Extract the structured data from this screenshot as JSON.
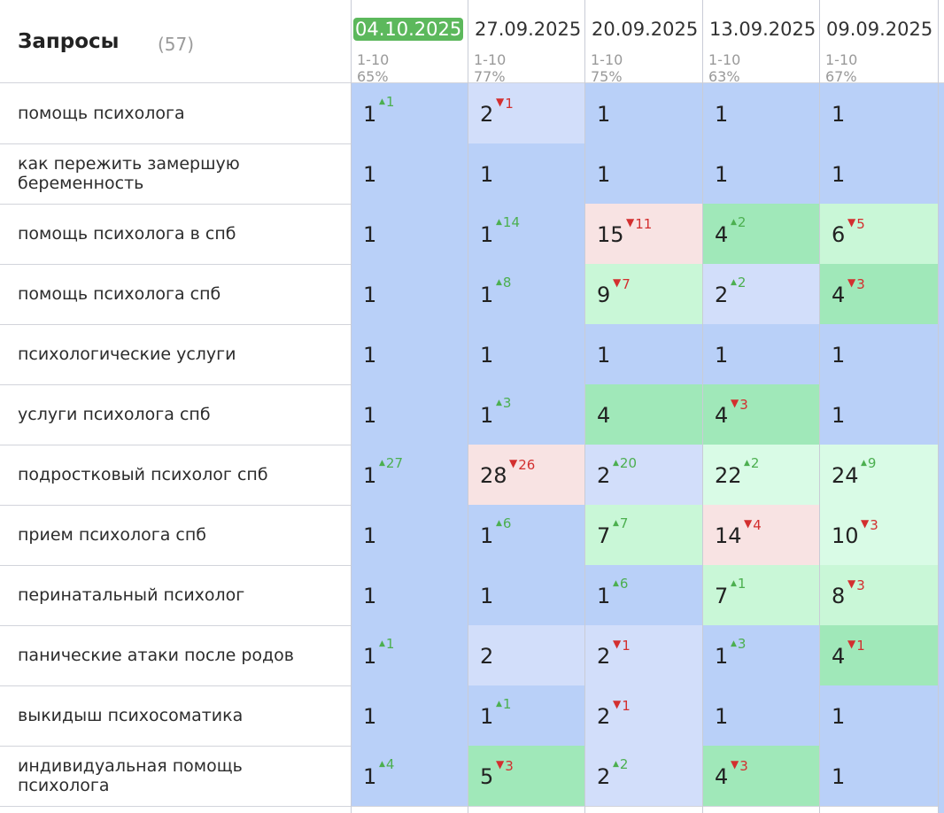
{
  "header": {
    "title": "Запросы",
    "count": "(57)"
  },
  "dates": [
    {
      "date": "04.10.2025",
      "range": "1-10",
      "pct": "65%",
      "current": true
    },
    {
      "date": "27.09.2025",
      "range": "1-10",
      "pct": "77%",
      "current": false
    },
    {
      "date": "20.09.2025",
      "range": "1-10",
      "pct": "75%",
      "current": false
    },
    {
      "date": "13.09.2025",
      "range": "1-10",
      "pct": "63%",
      "current": false
    },
    {
      "date": "09.09.2025",
      "range": "1-10",
      "pct": "67%",
      "current": false
    }
  ],
  "colors": {
    "blue": "#b9d0f8",
    "light_blue": "#d2defa",
    "green": "#a0e8b9",
    "light_green": "#c9f7d7",
    "pale_green": "#d9fbe6",
    "pink": "#f8e3e3",
    "up": "#4caf50",
    "down": "#d32f2f",
    "current_date": "#5cb85c"
  },
  "rows": [
    {
      "keyword": "помощь психолога",
      "cells": [
        {
          "pos": "1",
          "delta": "1",
          "dir": "up",
          "bg": "blue"
        },
        {
          "pos": "2",
          "delta": "1",
          "dir": "down",
          "bg": "light_blue"
        },
        {
          "pos": "1",
          "delta": "",
          "dir": "",
          "bg": "blue"
        },
        {
          "pos": "1",
          "delta": "",
          "dir": "",
          "bg": "blue"
        },
        {
          "pos": "1",
          "delta": "",
          "dir": "",
          "bg": "blue"
        }
      ]
    },
    {
      "keyword": "как пережить замершую беременность",
      "cells": [
        {
          "pos": "1",
          "delta": "",
          "dir": "",
          "bg": "blue"
        },
        {
          "pos": "1",
          "delta": "",
          "dir": "",
          "bg": "blue"
        },
        {
          "pos": "1",
          "delta": "",
          "dir": "",
          "bg": "blue"
        },
        {
          "pos": "1",
          "delta": "",
          "dir": "",
          "bg": "blue"
        },
        {
          "pos": "1",
          "delta": "",
          "dir": "",
          "bg": "blue"
        }
      ]
    },
    {
      "keyword": "помощь психолога в спб",
      "cells": [
        {
          "pos": "1",
          "delta": "",
          "dir": "",
          "bg": "blue"
        },
        {
          "pos": "1",
          "delta": "14",
          "dir": "up",
          "bg": "blue"
        },
        {
          "pos": "15",
          "delta": "11",
          "dir": "down",
          "bg": "pink"
        },
        {
          "pos": "4",
          "delta": "2",
          "dir": "up",
          "bg": "green"
        },
        {
          "pos": "6",
          "delta": "5",
          "dir": "down",
          "bg": "light_green"
        }
      ]
    },
    {
      "keyword": "помощь психолога спб",
      "cells": [
        {
          "pos": "1",
          "delta": "",
          "dir": "",
          "bg": "blue"
        },
        {
          "pos": "1",
          "delta": "8",
          "dir": "up",
          "bg": "blue"
        },
        {
          "pos": "9",
          "delta": "7",
          "dir": "down",
          "bg": "light_green"
        },
        {
          "pos": "2",
          "delta": "2",
          "dir": "up",
          "bg": "light_blue"
        },
        {
          "pos": "4",
          "delta": "3",
          "dir": "down",
          "bg": "green"
        }
      ]
    },
    {
      "keyword": "психологические услуги",
      "cells": [
        {
          "pos": "1",
          "delta": "",
          "dir": "",
          "bg": "blue"
        },
        {
          "pos": "1",
          "delta": "",
          "dir": "",
          "bg": "blue"
        },
        {
          "pos": "1",
          "delta": "",
          "dir": "",
          "bg": "blue"
        },
        {
          "pos": "1",
          "delta": "",
          "dir": "",
          "bg": "blue"
        },
        {
          "pos": "1",
          "delta": "",
          "dir": "",
          "bg": "blue"
        }
      ]
    },
    {
      "keyword": "услуги психолога спб",
      "cells": [
        {
          "pos": "1",
          "delta": "",
          "dir": "",
          "bg": "blue"
        },
        {
          "pos": "1",
          "delta": "3",
          "dir": "up",
          "bg": "blue"
        },
        {
          "pos": "4",
          "delta": "",
          "dir": "",
          "bg": "green"
        },
        {
          "pos": "4",
          "delta": "3",
          "dir": "down",
          "bg": "green"
        },
        {
          "pos": "1",
          "delta": "",
          "dir": "",
          "bg": "blue"
        }
      ]
    },
    {
      "keyword": "подростковый психолог спб",
      "cells": [
        {
          "pos": "1",
          "delta": "27",
          "dir": "up",
          "bg": "blue"
        },
        {
          "pos": "28",
          "delta": "26",
          "dir": "down",
          "bg": "pink"
        },
        {
          "pos": "2",
          "delta": "20",
          "dir": "up",
          "bg": "light_blue"
        },
        {
          "pos": "22",
          "delta": "2",
          "dir": "up",
          "bg": "pale_green"
        },
        {
          "pos": "24",
          "delta": "9",
          "dir": "up",
          "bg": "pale_green"
        }
      ]
    },
    {
      "keyword": "прием психолога спб",
      "cells": [
        {
          "pos": "1",
          "delta": "",
          "dir": "",
          "bg": "blue"
        },
        {
          "pos": "1",
          "delta": "6",
          "dir": "up",
          "bg": "blue"
        },
        {
          "pos": "7",
          "delta": "7",
          "dir": "up",
          "bg": "light_green"
        },
        {
          "pos": "14",
          "delta": "4",
          "dir": "down",
          "bg": "pink"
        },
        {
          "pos": "10",
          "delta": "3",
          "dir": "down",
          "bg": "pale_green"
        }
      ]
    },
    {
      "keyword": "перинатальный психолог",
      "cells": [
        {
          "pos": "1",
          "delta": "",
          "dir": "",
          "bg": "blue"
        },
        {
          "pos": "1",
          "delta": "",
          "dir": "",
          "bg": "blue"
        },
        {
          "pos": "1",
          "delta": "6",
          "dir": "up",
          "bg": "blue"
        },
        {
          "pos": "7",
          "delta": "1",
          "dir": "up",
          "bg": "light_green"
        },
        {
          "pos": "8",
          "delta": "3",
          "dir": "down",
          "bg": "light_green"
        }
      ]
    },
    {
      "keyword": "панические атаки после родов",
      "cells": [
        {
          "pos": "1",
          "delta": "1",
          "dir": "up",
          "bg": "blue"
        },
        {
          "pos": "2",
          "delta": "",
          "dir": "",
          "bg": "light_blue"
        },
        {
          "pos": "2",
          "delta": "1",
          "dir": "down",
          "bg": "light_blue"
        },
        {
          "pos": "1",
          "delta": "3",
          "dir": "up",
          "bg": "blue"
        },
        {
          "pos": "4",
          "delta": "1",
          "dir": "down",
          "bg": "green"
        }
      ]
    },
    {
      "keyword": "выкидыш психосоматика",
      "cells": [
        {
          "pos": "1",
          "delta": "",
          "dir": "",
          "bg": "blue"
        },
        {
          "pos": "1",
          "delta": "1",
          "dir": "up",
          "bg": "blue"
        },
        {
          "pos": "2",
          "delta": "1",
          "dir": "down",
          "bg": "light_blue"
        },
        {
          "pos": "1",
          "delta": "",
          "dir": "",
          "bg": "blue"
        },
        {
          "pos": "1",
          "delta": "",
          "dir": "",
          "bg": "blue"
        }
      ]
    },
    {
      "keyword": "индивидуальная помощь психолога",
      "cells": [
        {
          "pos": "1",
          "delta": "4",
          "dir": "up",
          "bg": "blue"
        },
        {
          "pos": "5",
          "delta": "3",
          "dir": "down",
          "bg": "green"
        },
        {
          "pos": "2",
          "delta": "2",
          "dir": "up",
          "bg": "light_blue"
        },
        {
          "pos": "4",
          "delta": "3",
          "dir": "down",
          "bg": "green"
        },
        {
          "pos": "1",
          "delta": "",
          "dir": "",
          "bg": "blue"
        }
      ]
    }
  ]
}
